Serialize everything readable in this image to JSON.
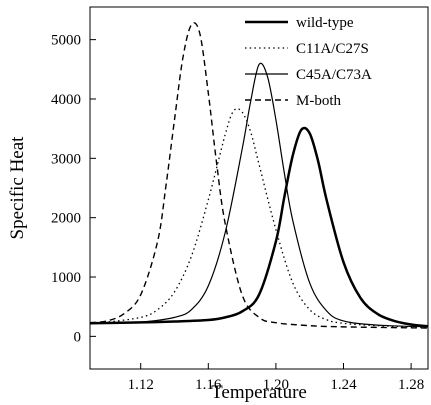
{
  "chart_data": {
    "type": "line",
    "title": "",
    "xlabel": "Temperature",
    "ylabel": "Specific Heat",
    "xlim": [
      1.09,
      1.29
    ],
    "ylim": [
      -550,
      5550
    ],
    "xticks": [
      1.12,
      1.16,
      1.2,
      1.24,
      1.28
    ],
    "xtick_labels": [
      "1.12",
      "1.16",
      "1.20",
      "1.24",
      "1.28"
    ],
    "yticks": [
      0,
      1000,
      2000,
      3000,
      4000,
      5000
    ],
    "ytick_labels": [
      "0",
      "1000",
      "2000",
      "3000",
      "4000",
      "5000"
    ],
    "grid": false,
    "legend_position": "top-right",
    "series": [
      {
        "name": "wild-type",
        "style": "solid-thick",
        "color": "#000000",
        "x": [
          1.09,
          1.1,
          1.12,
          1.14,
          1.16,
          1.17,
          1.18,
          1.19,
          1.2,
          1.205,
          1.21,
          1.215,
          1.22,
          1.225,
          1.23,
          1.24,
          1.25,
          1.26,
          1.27,
          1.28,
          1.29
        ],
        "y": [
          220,
          225,
          235,
          250,
          275,
          320,
          420,
          700,
          1600,
          2350,
          3050,
          3480,
          3420,
          2950,
          2300,
          1250,
          650,
          380,
          260,
          200,
          170
        ]
      },
      {
        "name": "C11A/C27S",
        "style": "dotted",
        "color": "#000000",
        "x": [
          1.09,
          1.1,
          1.12,
          1.13,
          1.14,
          1.15,
          1.16,
          1.17,
          1.175,
          1.18,
          1.185,
          1.19,
          1.2,
          1.21,
          1.22,
          1.23,
          1.24,
          1.26,
          1.29
        ],
        "y": [
          220,
          240,
          320,
          450,
          750,
          1350,
          2300,
          3400,
          3800,
          3780,
          3450,
          2900,
          1800,
          900,
          450,
          280,
          220,
          180,
          150
        ]
      },
      {
        "name": "C45A/C73A",
        "style": "solid-thin",
        "color": "#000000",
        "x": [
          1.09,
          1.1,
          1.12,
          1.14,
          1.15,
          1.16,
          1.17,
          1.18,
          1.185,
          1.19,
          1.195,
          1.2,
          1.205,
          1.21,
          1.22,
          1.23,
          1.24,
          1.26,
          1.29
        ],
        "y": [
          220,
          225,
          240,
          320,
          450,
          850,
          1750,
          3150,
          3950,
          4580,
          4380,
          3650,
          2750,
          1950,
          900,
          430,
          260,
          190,
          160
        ]
      },
      {
        "name": "M-both",
        "style": "dashed",
        "color": "#000000",
        "x": [
          1.09,
          1.1,
          1.11,
          1.12,
          1.13,
          1.135,
          1.14,
          1.145,
          1.15,
          1.155,
          1.16,
          1.165,
          1.17,
          1.18,
          1.19,
          1.2,
          1.22,
          1.24,
          1.29
        ],
        "y": [
          230,
          260,
          380,
          700,
          1600,
          2550,
          3650,
          4700,
          5250,
          5100,
          4100,
          2900,
          1900,
          700,
          320,
          230,
          180,
          160,
          140
        ]
      }
    ]
  }
}
